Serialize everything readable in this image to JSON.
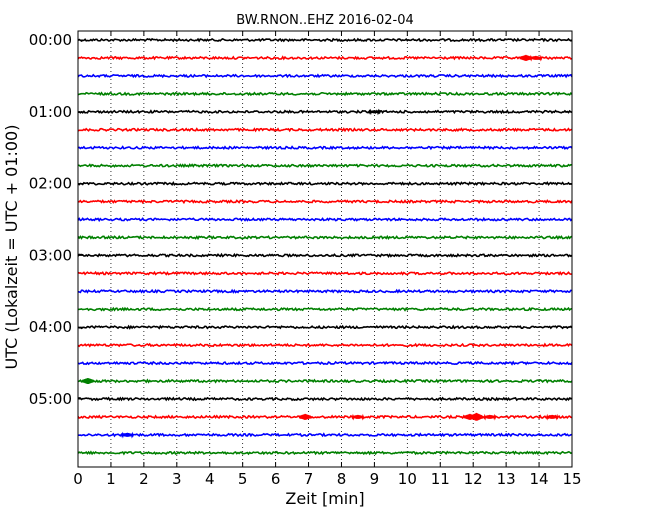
{
  "chart_data": {
    "type": "line",
    "title": "BW.RNON..EHZ 2016-02-04",
    "xlabel": "Zeit  [min]",
    "ylabel": "UTC (Lokalzeit = UTC + 01:00)",
    "xlim": [
      0,
      15
    ],
    "x_ticks": [
      "0",
      "1",
      "2",
      "3",
      "4",
      "5",
      "6",
      "7",
      "8",
      "9",
      "10",
      "11",
      "12",
      "13",
      "14",
      "15"
    ],
    "y_tick_labels": [
      "00:00",
      "01:00",
      "02:00",
      "03:00",
      "04:00",
      "05:00"
    ],
    "grid": "vertical dotted",
    "trace_colors": [
      "#000000",
      "#ff0000",
      "#0000ff",
      "#008000"
    ],
    "traces": [
      {
        "start": "00:00",
        "color": "#000000",
        "events": []
      },
      {
        "start": "00:15",
        "color": "#ff0000",
        "events": [
          {
            "t": 13.6,
            "amp": 3
          },
          {
            "t": 13.9,
            "amp": 2
          }
        ]
      },
      {
        "start": "00:30",
        "color": "#0000ff",
        "events": []
      },
      {
        "start": "00:45",
        "color": "#008000",
        "events": []
      },
      {
        "start": "01:00",
        "color": "#000000",
        "events": [
          {
            "t": 9.0,
            "amp": 1.5
          }
        ]
      },
      {
        "start": "01:15",
        "color": "#ff0000",
        "events": []
      },
      {
        "start": "01:30",
        "color": "#0000ff",
        "events": []
      },
      {
        "start": "01:45",
        "color": "#008000",
        "events": []
      },
      {
        "start": "02:00",
        "color": "#000000",
        "events": []
      },
      {
        "start": "02:15",
        "color": "#ff0000",
        "events": []
      },
      {
        "start": "02:30",
        "color": "#0000ff",
        "events": []
      },
      {
        "start": "02:45",
        "color": "#008000",
        "events": []
      },
      {
        "start": "03:00",
        "color": "#000000",
        "events": []
      },
      {
        "start": "03:15",
        "color": "#ff0000",
        "events": []
      },
      {
        "start": "03:30",
        "color": "#0000ff",
        "events": []
      },
      {
        "start": "03:45",
        "color": "#008000",
        "events": []
      },
      {
        "start": "04:00",
        "color": "#000000",
        "events": []
      },
      {
        "start": "04:15",
        "color": "#ff0000",
        "events": []
      },
      {
        "start": "04:30",
        "color": "#0000ff",
        "events": []
      },
      {
        "start": "04:45",
        "color": "#008000",
        "events": [
          {
            "t": 0.3,
            "amp": 3
          }
        ]
      },
      {
        "start": "05:00",
        "color": "#000000",
        "events": []
      },
      {
        "start": "05:15",
        "color": "#ff0000",
        "events": [
          {
            "t": 6.9,
            "amp": 3
          },
          {
            "t": 8.5,
            "amp": 2
          },
          {
            "t": 11.9,
            "amp": 3
          },
          {
            "t": 12.1,
            "amp": 4
          },
          {
            "t": 12.5,
            "amp": 2
          },
          {
            "t": 14.4,
            "amp": 2
          }
        ]
      },
      {
        "start": "05:30",
        "color": "#0000ff",
        "events": [
          {
            "t": 1.5,
            "amp": 2
          }
        ]
      },
      {
        "start": "05:45",
        "color": "#008000",
        "events": []
      }
    ]
  }
}
